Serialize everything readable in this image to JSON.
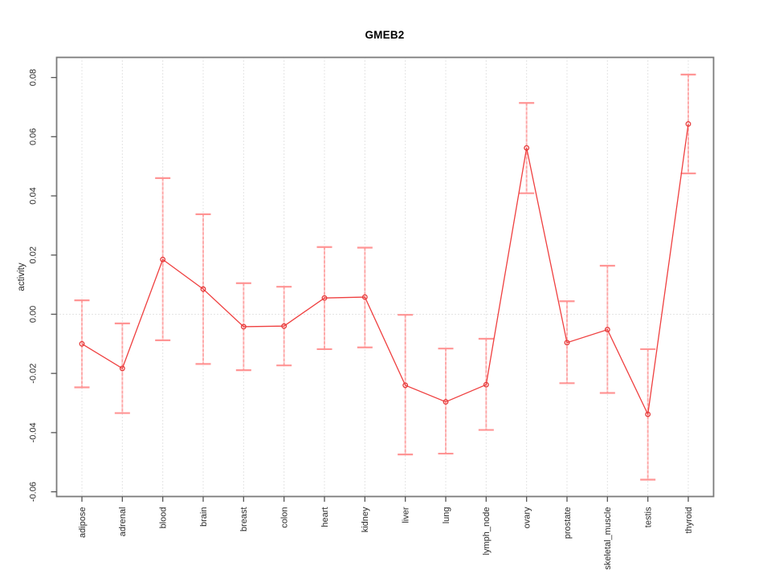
{
  "chart_data": {
    "type": "line",
    "title": "GMEB2",
    "xlabel": "",
    "ylabel": "activity",
    "categories": [
      "adipose",
      "adrenal",
      "blood",
      "brain",
      "breast",
      "colon",
      "heart",
      "kidney",
      "liver",
      "lung",
      "lymph_node",
      "ovary",
      "prostate",
      "skeletal_muscle",
      "testis",
      "thyroid"
    ],
    "series": [
      {
        "name": "GMEB2 activity",
        "marker": "open-circle",
        "values": [
          -0.01,
          -0.0183,
          0.0185,
          0.0085,
          -0.0042,
          -0.004,
          0.0055,
          0.0058,
          -0.024,
          -0.0296,
          -0.0238,
          0.0562,
          -0.0096,
          -0.0052,
          -0.0338,
          0.0643
        ],
        "upper": [
          0.0047,
          -0.0031,
          0.046,
          0.0338,
          0.0105,
          0.0093,
          0.0227,
          0.0225,
          -0.0002,
          -0.0116,
          -0.0083,
          0.0714,
          0.0044,
          0.0164,
          -0.0118,
          0.081
        ],
        "lower": [
          -0.0247,
          -0.0334,
          -0.0088,
          -0.0168,
          -0.0189,
          -0.0173,
          -0.0118,
          -0.0112,
          -0.0474,
          -0.0471,
          -0.0391,
          0.0409,
          -0.0233,
          -0.0266,
          -0.0559,
          0.0476
        ]
      }
    ],
    "ylim": [
      -0.0616,
      0.0868
    ],
    "yticks": [
      0.08,
      0.06,
      0.04,
      0.02,
      0,
      -0.02,
      -0.04,
      -0.06
    ],
    "ytick_labels": [
      "0.08",
      "0.06",
      "0.04",
      "0.02",
      "0.00",
      "-0.02",
      "-0.04",
      "-0.06"
    ],
    "grid": "dotted vertical gridline at each category; dotted horizontal line at y=0",
    "legend": "none",
    "error_bars": true
  },
  "colors": {
    "series_line": "#ef3f3f",
    "point_stroke": "#e53b3b",
    "errorbar": "#ff9d9d",
    "errorbar_cap": "#ff9090",
    "grid": "#c9c9c9",
    "zero_line": "#c9c9c9",
    "box": "#7a7a7a",
    "tick": "#555555",
    "tick_text": "#2b2b2b",
    "title_text": "#000000",
    "background": "#ffffff"
  }
}
